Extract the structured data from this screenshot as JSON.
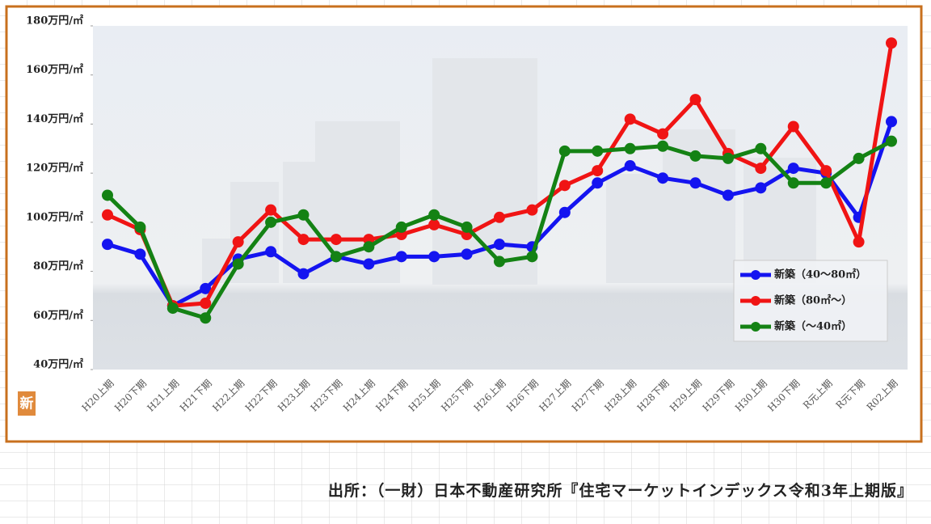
{
  "chart_data": {
    "type": "line",
    "categories": [
      "H20上期",
      "H20下期",
      "H21上期",
      "H21下期",
      "H22上期",
      "H22下期",
      "H23上期",
      "H23下期",
      "H24上期",
      "H24下期",
      "H25上期",
      "H25下期",
      "H26上期",
      "H26下期",
      "H27上期",
      "H27下期",
      "H28上期",
      "H28下期",
      "H29上期",
      "H29下期",
      "H30上期",
      "H30下期",
      "R元上期",
      "R元下期",
      "R02上期"
    ],
    "series": [
      {
        "name": "新築（40～80㎡）",
        "color": "#1414f0",
        "values": [
          91,
          87,
          66,
          73,
          85,
          88,
          79,
          86,
          83,
          86,
          86,
          87,
          91,
          90,
          104,
          116,
          123,
          118,
          116,
          111,
          114,
          122,
          120,
          102,
          141
        ]
      },
      {
        "name": "新築（80㎡～）",
        "color": "#f01414",
        "values": [
          103,
          97,
          66,
          67,
          92,
          105,
          93,
          93,
          93,
          95,
          99,
          95,
          102,
          105,
          115,
          121,
          142,
          136,
          150,
          128,
          122,
          139,
          121,
          92,
          173
        ]
      },
      {
        "name": "新築（～40㎡）",
        "color": "#148214",
        "values": [
          111,
          98,
          65,
          61,
          83,
          100,
          103,
          86,
          90,
          98,
          103,
          98,
          84,
          86,
          129,
          129,
          130,
          131,
          127,
          126,
          130,
          116,
          116,
          126,
          133
        ]
      }
    ],
    "ylim": [
      40,
      180
    ],
    "yticks": [
      {
        "value": 40,
        "label": "40万円/㎡"
      },
      {
        "value": 60,
        "label": "60万円/㎡"
      },
      {
        "value": 80,
        "label": "80万円/㎡"
      },
      {
        "value": 100,
        "label": "100万円/㎡"
      },
      {
        "value": 120,
        "label": "120万円/㎡"
      },
      {
        "value": 140,
        "label": "140万円/㎡"
      },
      {
        "value": 160,
        "label": "160万円/㎡"
      },
      {
        "value": 180,
        "label": "180万円/㎡"
      }
    ],
    "legend": "lower right",
    "icon_label": "新",
    "source": "出所：（一財）日本不動産研究所『住宅マーケットインデックス令和3年上期版』"
  }
}
